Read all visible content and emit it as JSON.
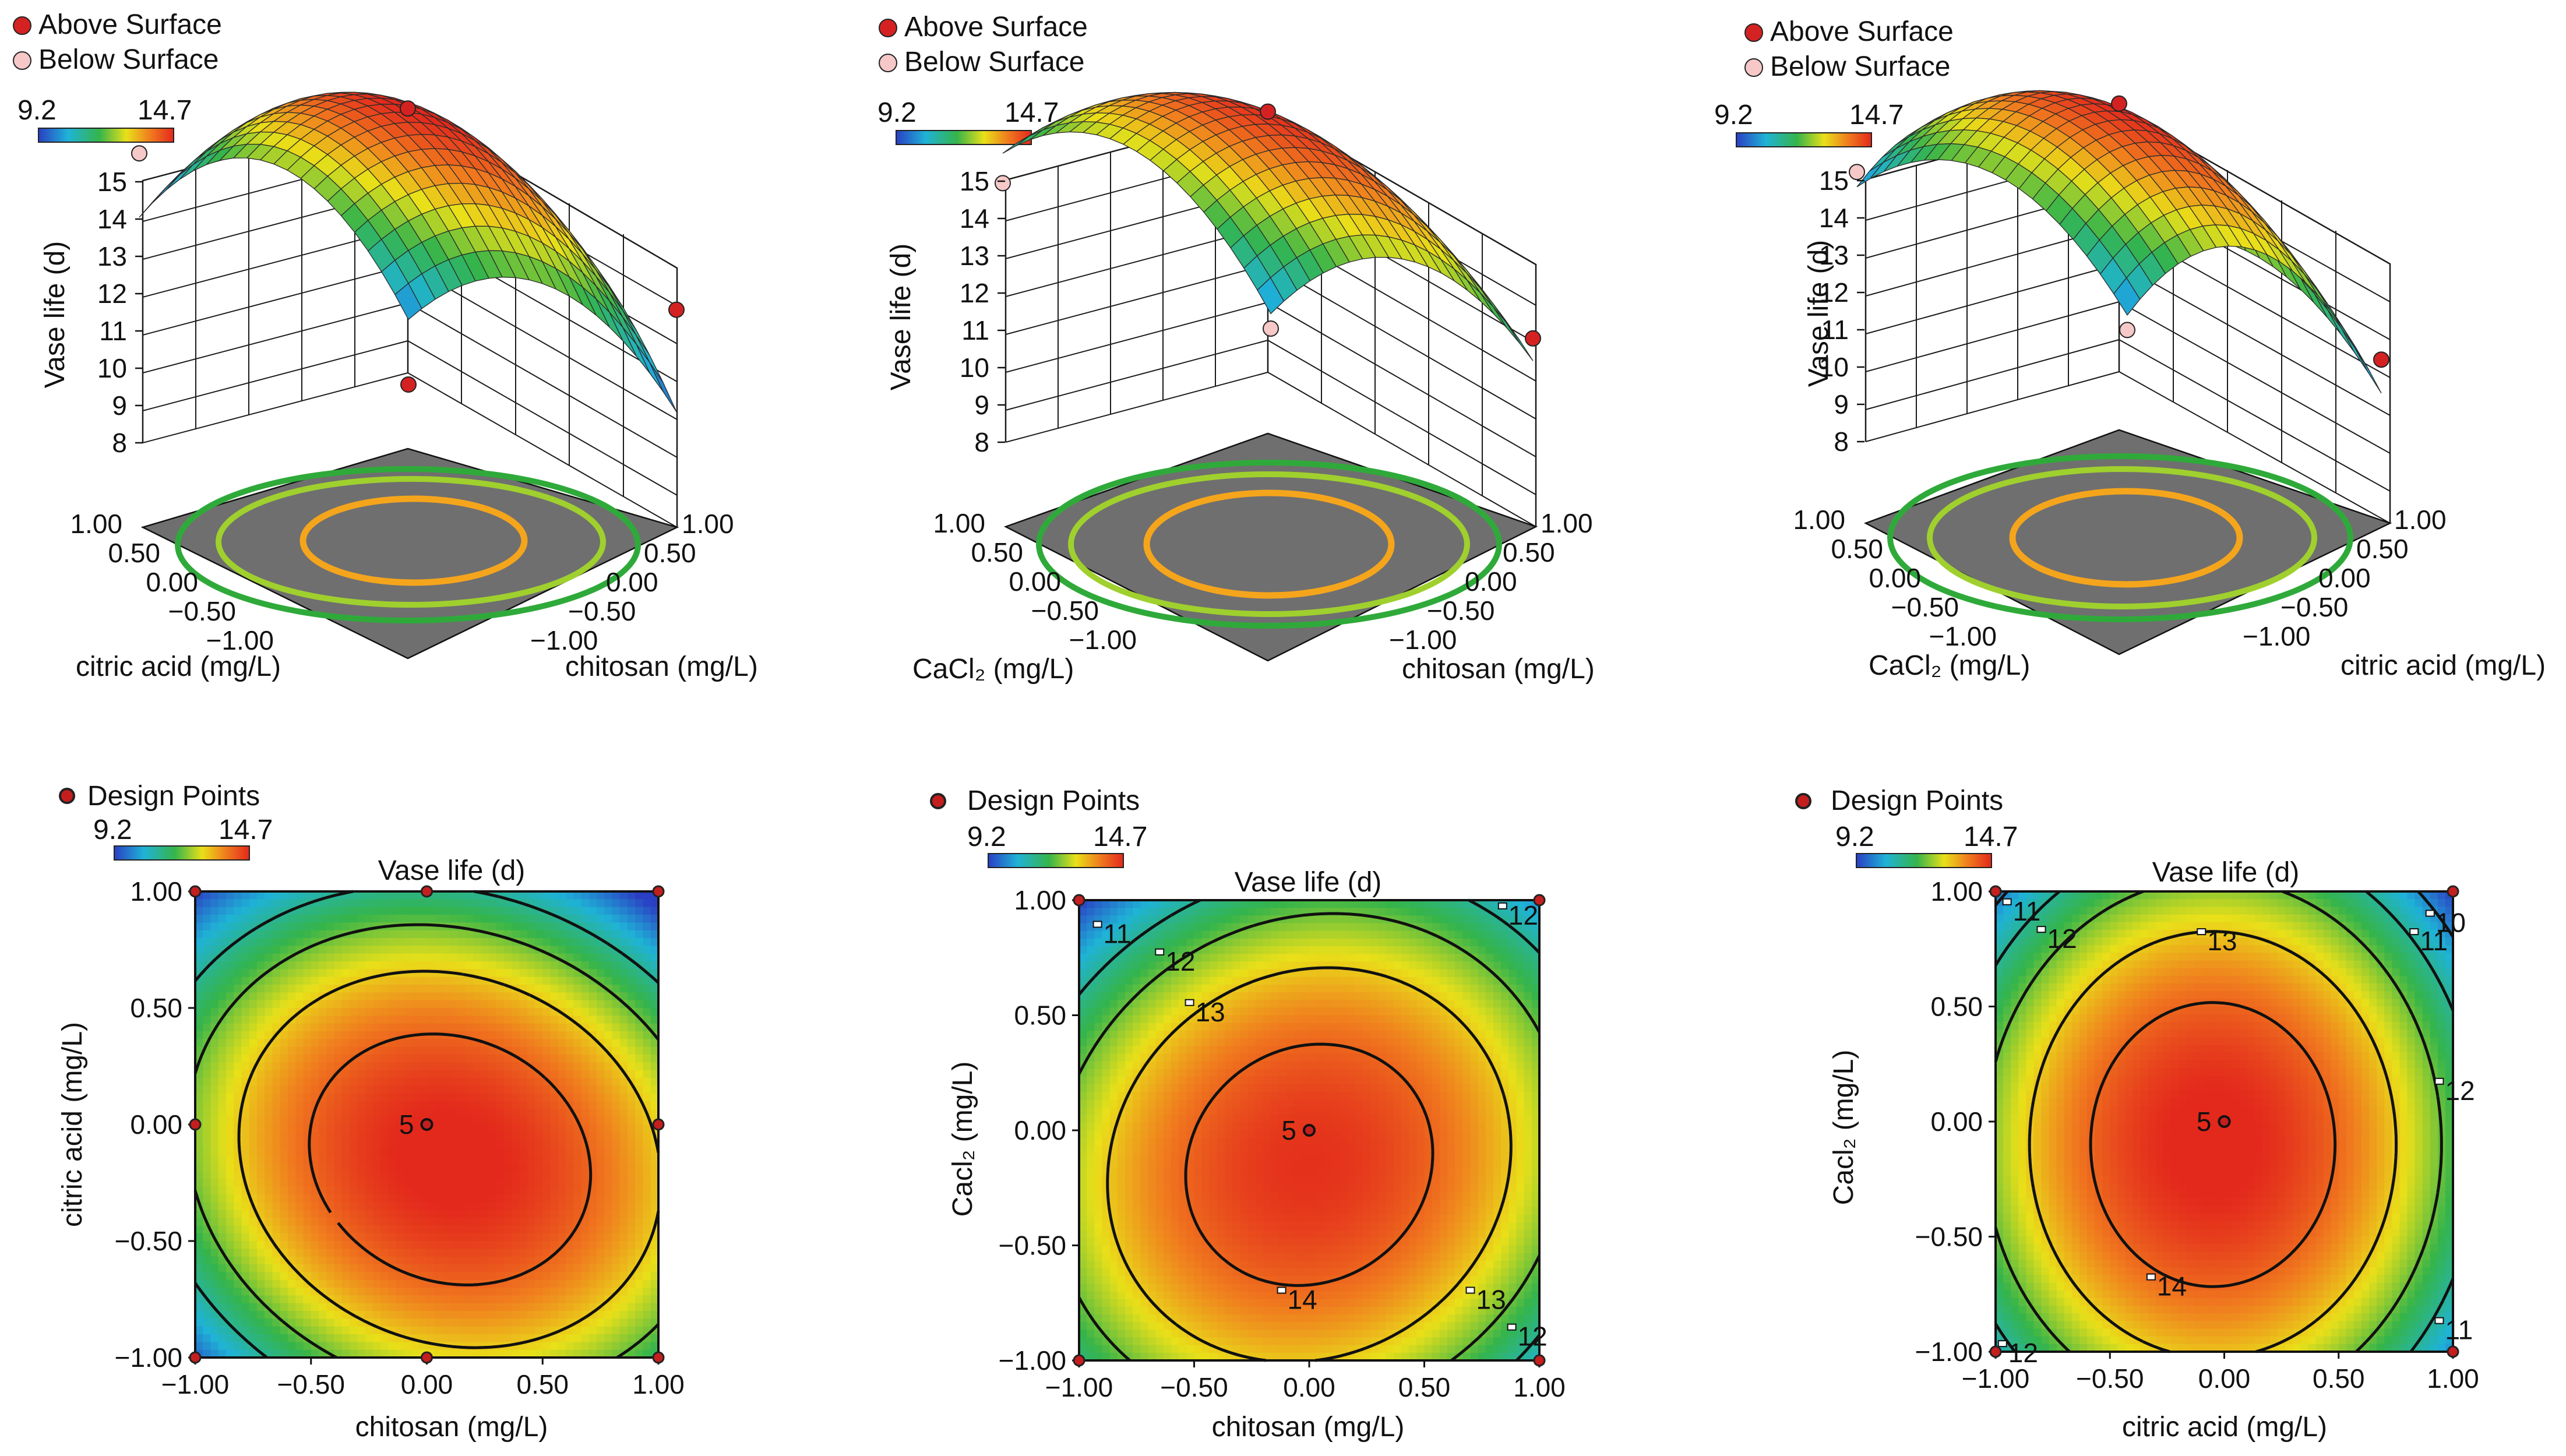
{
  "colors": {
    "scale_stops": [
      "#2a3fc4",
      "#1fb3d6",
      "#35b44a",
      "#e9e019",
      "#f07a1e",
      "#e3281c"
    ],
    "design_point": "#c41e1e",
    "above_surface": "#d42222",
    "below_surface": "#f6c8c8",
    "floor": "#6f6f6f",
    "contour_outer": "#2faa3a",
    "contour_mid": "#9fd02e",
    "contour_inner": "#f5a51c",
    "frame": "#111111"
  },
  "legend_3d": {
    "above_label": "Above Surface",
    "below_label": "Below Surface"
  },
  "legend_2d": {
    "design_label": "Design Points"
  },
  "colorbar": {
    "min_label": "9.2",
    "max_label": "14.7"
  },
  "chart_data": [
    {
      "type": "surface3d",
      "id": "s1",
      "z_label": "Vase life (d)",
      "x_label": "chitosan (mg/L)",
      "y_label": "citric acid (mg/L)",
      "z_ticks": [
        "8",
        "9",
        "10",
        "11",
        "12",
        "13",
        "14",
        "15"
      ],
      "x_ticks": [
        "1.00",
        "0.50",
        "0.00",
        "-0.50",
        "-1.00"
      ],
      "y_ticks": [
        "1.00",
        "0.50",
        "0.00",
        "-0.50",
        "-1.00"
      ],
      "zlim": [
        8,
        15
      ],
      "surface": {
        "max": 14.8,
        "x0": 0.1,
        "y0": 0.05,
        "a": 2.2,
        "b": 2.8,
        "c": -0.6
      },
      "design_points": [
        {
          "x": -1,
          "y": 1,
          "z": 10.7,
          "kind": "below"
        },
        {
          "x": 1,
          "y": -1,
          "z": 12.1,
          "kind": "above"
        },
        {
          "x": 0,
          "y": 0,
          "z": 14.7,
          "kind": "above"
        },
        {
          "x": -1,
          "y": -1,
          "z": 8.0,
          "kind": "above"
        }
      ]
    },
    {
      "type": "surface3d",
      "id": "s2",
      "z_label": "Vase life (d)",
      "x_label": "chitosan (mg/L)",
      "y_label": "CaCl₂ (mg/L)",
      "z_ticks": [
        "8",
        "9",
        "10",
        "11",
        "12",
        "13",
        "14",
        "15"
      ],
      "x_ticks": [
        "1.00",
        "0.50",
        "0.00",
        "-0.50",
        "-1.00"
      ],
      "y_ticks": [
        "1.00",
        "0.50",
        "0.00",
        "-0.50",
        "-1.00"
      ],
      "zlim": [
        8,
        15
      ],
      "surface": {
        "max": 14.6,
        "x0": 0.0,
        "y0": 0.0,
        "a": 2.1,
        "b": 2.2,
        "c": 0.4
      },
      "design_points": [
        {
          "x": -1,
          "y": 1,
          "z": 9.9,
          "kind": "below"
        },
        {
          "x": 1,
          "y": -1,
          "z": 11.3,
          "kind": "above"
        },
        {
          "x": 0,
          "y": 0,
          "z": 14.6,
          "kind": "above"
        },
        {
          "x": -1,
          "y": -1,
          "z": 9.5,
          "kind": "below"
        }
      ]
    },
    {
      "type": "surface3d",
      "id": "s3",
      "z_label": "Vase life (d)",
      "x_label": "citric acid (mg/L)",
      "y_label": "CaCl₂ (mg/L)",
      "z_ticks": [
        "8",
        "9",
        "10",
        "11",
        "12",
        "13",
        "14",
        "15"
      ],
      "x_ticks": [
        "1.00",
        "0.50",
        "0.00",
        "-0.50",
        "-1.00"
      ],
      "y_ticks": [
        "1.00",
        "0.50",
        "0.00",
        "-0.50",
        "-1.00"
      ],
      "zlim": [
        8,
        15
      ],
      "surface": {
        "max": 14.7,
        "x0": 0.0,
        "y0": 0.0,
        "a": 2.8,
        "b": 2.1,
        "c": 0.0
      },
      "design_points": [
        {
          "x": -1,
          "y": 1,
          "z": 10.2,
          "kind": "below"
        },
        {
          "x": 1,
          "y": -1,
          "z": 10.7,
          "kind": "above"
        },
        {
          "x": 0,
          "y": 0,
          "z": 14.8,
          "kind": "above"
        },
        {
          "x": -1,
          "y": -1,
          "z": 9.4,
          "kind": "below"
        }
      ]
    },
    {
      "type": "contour",
      "id": "c1",
      "title": "Vase life (d)",
      "x_label": "chitosan (mg/L)",
      "y_label": "citric acid (mg/L)",
      "x_ticks": [
        "-1.00",
        "-0.50",
        "0.00",
        "0.50",
        "1.00"
      ],
      "y_ticks": [
        "1.00",
        "0.50",
        "0.00",
        "-0.50",
        "-1.00"
      ],
      "xlim": [
        -1,
        1
      ],
      "ylim": [
        -1,
        1
      ],
      "surface": {
        "max": 14.8,
        "x0": 0.1,
        "y0": -0.15,
        "a": 2.2,
        "b": 2.8,
        "c": 0.6
      },
      "contour_levels": [
        11,
        12,
        13,
        14
      ],
      "contour_labels": [],
      "center_label": "5",
      "center": {
        "x": 0,
        "y": 0
      },
      "corner_points": [
        [
          -1,
          1
        ],
        [
          1,
          1
        ],
        [
          -1,
          -1
        ],
        [
          1,
          -1
        ],
        [
          -1,
          0
        ],
        [
          1,
          0
        ],
        [
          0,
          1
        ],
        [
          0,
          -1
        ]
      ]
    },
    {
      "type": "contour",
      "id": "c2",
      "title": "Vase life (d)",
      "x_label": "chitosan (mg/L)",
      "y_label": "Cacl₂ (mg/L)",
      "x_ticks": [
        "-1.00",
        "-0.50",
        "0.00",
        "0.50",
        "1.00"
      ],
      "y_ticks": [
        "1.00",
        "0.50",
        "0.00",
        "-0.50",
        "-1.00"
      ],
      "xlim": [
        -1,
        1
      ],
      "ylim": [
        -1,
        1
      ],
      "surface": {
        "max": 14.6,
        "x0": 0.0,
        "y0": -0.15,
        "a": 2.1,
        "b": 2.2,
        "c": -0.4
      },
      "contour_levels": [
        11,
        12,
        13,
        14
      ],
      "contour_labels": [
        {
          "text": "11",
          "x": -0.92,
          "y": 0.89
        },
        {
          "text": "12",
          "x": -0.65,
          "y": 0.77
        },
        {
          "text": "13",
          "x": -0.52,
          "y": 0.55
        },
        {
          "text": "14",
          "x": -0.12,
          "y": -0.7
        },
        {
          "text": "13",
          "x": 0.7,
          "y": -0.7
        },
        {
          "text": "12",
          "x": 0.88,
          "y": -0.86
        },
        {
          "text": "12",
          "x": 0.84,
          "y": 0.97
        }
      ],
      "center_label": "5",
      "center": {
        "x": 0,
        "y": 0
      },
      "corner_points": [
        [
          -1,
          1
        ],
        [
          1,
          1
        ],
        [
          -1,
          -1
        ],
        [
          1,
          -1
        ]
      ]
    },
    {
      "type": "contour",
      "id": "c3",
      "title": "Vase life (d)",
      "x_label": "citric acid (mg/L)",
      "y_label": "Cacl₂ (mg/L)",
      "x_ticks": [
        "-1.00",
        "-0.50",
        "0.00",
        "0.50",
        "1.00"
      ],
      "y_ticks": [
        "1.00",
        "0.50",
        "0.00",
        "-0.50",
        "-1.00"
      ],
      "xlim": [
        -1,
        1
      ],
      "ylim": [
        -1,
        1
      ],
      "surface": {
        "max": 14.8,
        "x0": -0.05,
        "y0": -0.1,
        "a": 2.8,
        "b": 2.1,
        "c": 0.0
      },
      "contour_levels": [
        10,
        11,
        12,
        13,
        14
      ],
      "contour_labels": [
        {
          "text": "11",
          "x": -0.95,
          "y": 0.95
        },
        {
          "text": "12",
          "x": -0.8,
          "y": 0.83
        },
        {
          "text": "13",
          "x": -0.1,
          "y": 0.82
        },
        {
          "text": "14",
          "x": -0.32,
          "y": -0.68
        },
        {
          "text": "12",
          "x": -0.97,
          "y": -0.97
        },
        {
          "text": "10",
          "x": 0.9,
          "y": 0.9
        },
        {
          "text": "11",
          "x": 0.83,
          "y": 0.82
        },
        {
          "text": "12",
          "x": 0.94,
          "y": 0.17
        },
        {
          "text": "11",
          "x": 0.94,
          "y": -0.87
        }
      ],
      "center_label": "5",
      "center": {
        "x": 0,
        "y": 0
      },
      "corner_points": [
        [
          -1,
          1
        ],
        [
          1,
          1
        ],
        [
          -1,
          -1
        ],
        [
          1,
          -1
        ]
      ]
    }
  ]
}
